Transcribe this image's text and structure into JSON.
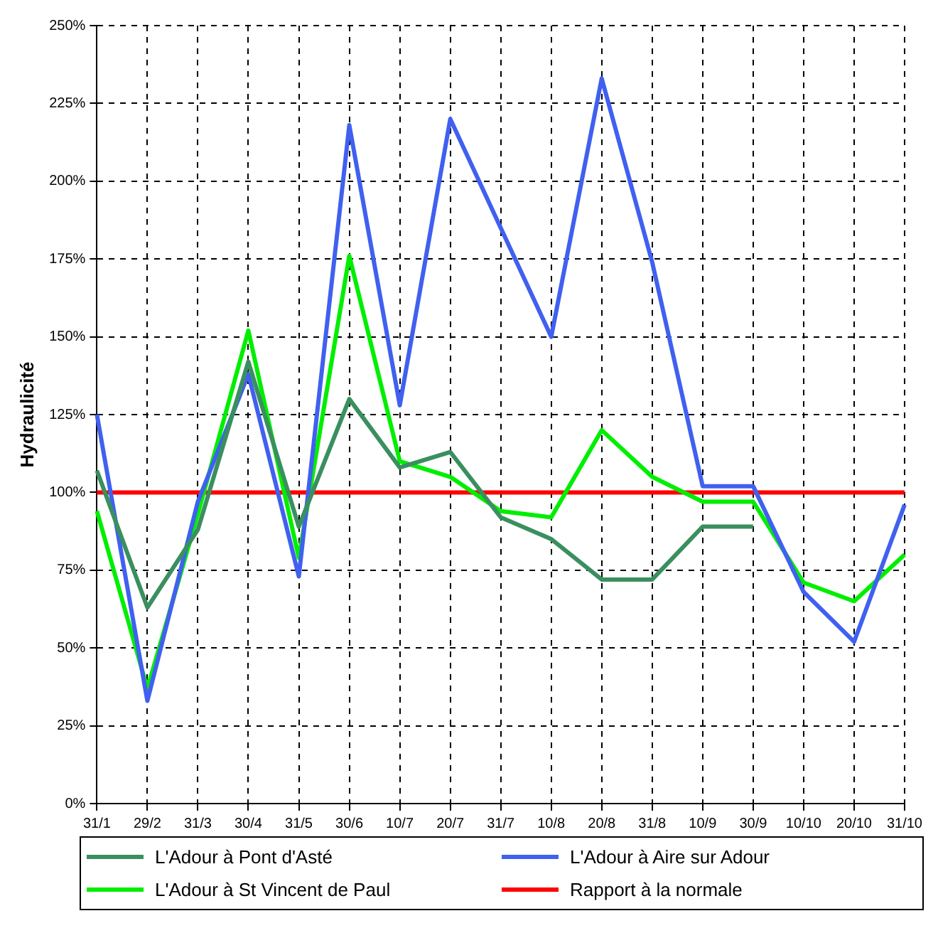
{
  "chart_data": {
    "type": "line",
    "ylabel": "Hydraulicité",
    "categories": [
      "31/1",
      "29/2",
      "31/3",
      "30/4",
      "31/5",
      "30/6",
      "10/7",
      "20/7",
      "31/7",
      "10/8",
      "20/8",
      "31/8",
      "10/9",
      "30/9",
      "10/10",
      "20/10",
      "31/10"
    ],
    "series": [
      {
        "name": "L'Adour à Pont d'Asté",
        "color": "#3a8f5f",
        "values": [
          107,
          63,
          88,
          142,
          89,
          130,
          108,
          113,
          92,
          85,
          72,
          72,
          89,
          89,
          null,
          null,
          null
        ]
      },
      {
        "name": "L'Adour à Aire sur Adour",
        "color": "#4060f0",
        "values": [
          125,
          33,
          97,
          138,
          73,
          218,
          128,
          220,
          185,
          150,
          233,
          174,
          102,
          102,
          68,
          52,
          96
        ]
      },
      {
        "name": "L'Adour à St Vincent de Paul",
        "color": "#00ee00",
        "values": [
          94,
          37,
          93,
          152,
          79,
          176,
          110,
          105,
          94,
          92,
          120,
          105,
          97,
          97,
          71,
          65,
          80
        ]
      },
      {
        "name": "Rapport à la normale",
        "color": "#ff0000",
        "values": [
          100,
          100,
          100,
          100,
          100,
          100,
          100,
          100,
          100,
          100,
          100,
          100,
          100,
          100,
          100,
          100,
          100
        ]
      }
    ],
    "ylim": [
      0,
      250
    ],
    "yticks": [
      {
        "value": 0,
        "label": "0%"
      },
      {
        "value": 25,
        "label": "25%"
      },
      {
        "value": 50,
        "label": "50%"
      },
      {
        "value": 75,
        "label": "75%"
      },
      {
        "value": 100,
        "label": "100%"
      },
      {
        "value": 125,
        "label": "125%"
      },
      {
        "value": 150,
        "label": "150%"
      },
      {
        "value": 175,
        "label": "175%"
      },
      {
        "value": 200,
        "label": "200%"
      },
      {
        "value": 225,
        "label": "225%"
      },
      {
        "value": 250,
        "label": "250%"
      }
    ],
    "grid": true,
    "legend": "bottom",
    "marker": "none",
    "line_style": "solid"
  }
}
